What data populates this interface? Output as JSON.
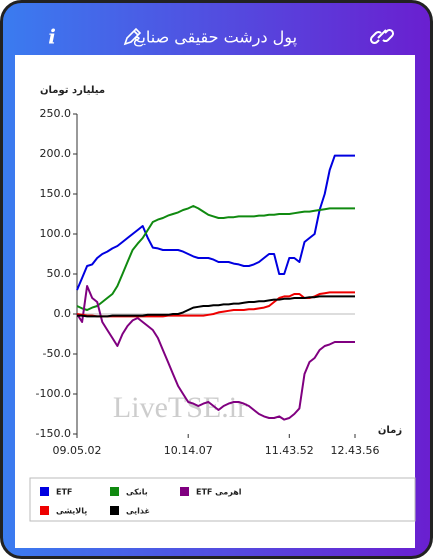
{
  "header": {
    "title": "پول درشت حقیقی صنایع",
    "info": "i"
  },
  "chart_data": {
    "type": "line",
    "y_label": "میلیارد تومان",
    "x_label": "زمان",
    "watermark": "LiveTSE.ir",
    "x": [
      0,
      1,
      2,
      3,
      4,
      5,
      6,
      7,
      8,
      9,
      10,
      11,
      12,
      13,
      14,
      15,
      16,
      17,
      18,
      19,
      20,
      21,
      22,
      23,
      24,
      25,
      26,
      27,
      28,
      29,
      30,
      31,
      32,
      33,
      34,
      35,
      36,
      37,
      38,
      39,
      40,
      41,
      42,
      43,
      44,
      45,
      46,
      47,
      48,
      49,
      50,
      51,
      52,
      53,
      54,
      55
    ],
    "xlim": [
      0,
      55
    ],
    "xticks": [
      {
        "value": 0,
        "label": "09.05.02"
      },
      {
        "value": 22,
        "label": "10.14.07"
      },
      {
        "value": 42,
        "label": "11.43.52"
      },
      {
        "value": 55,
        "label": "12.43.56"
      }
    ],
    "ylim": [
      -150,
      250
    ],
    "yticks": [
      {
        "value": -150,
        "label": "-150.0"
      },
      {
        "value": -100,
        "label": "-100.0"
      },
      {
        "value": -50,
        "label": "-50.0"
      },
      {
        "value": 0,
        "label": "0.0"
      },
      {
        "value": 50,
        "label": "50.0"
      },
      {
        "value": 100,
        "label": "100.0"
      },
      {
        "value": 150,
        "label": "150.0"
      },
      {
        "value": 200,
        "label": "200.0"
      },
      {
        "value": 250,
        "label": "250.0"
      }
    ],
    "grid": false,
    "legend": "bottom",
    "series": [
      {
        "name": "ETF",
        "color": "#0000e0",
        "values": [
          30,
          45,
          60,
          62,
          70,
          75,
          78,
          82,
          85,
          90,
          95,
          100,
          105,
          110,
          95,
          83,
          82,
          80,
          80,
          80,
          80,
          78,
          75,
          72,
          70,
          70,
          70,
          68,
          65,
          65,
          65,
          63,
          62,
          60,
          60,
          62,
          65,
          70,
          75,
          75,
          50,
          50,
          70,
          70,
          65,
          90,
          95,
          100,
          130,
          150,
          180,
          198,
          198,
          198,
          198,
          198
        ]
      },
      {
        "name": "بانکی",
        "color": "#108a10",
        "values": [
          10,
          7,
          5,
          8,
          10,
          15,
          20,
          25,
          35,
          50,
          65,
          80,
          88,
          95,
          105,
          115,
          118,
          120,
          123,
          125,
          127,
          130,
          132,
          135,
          132,
          128,
          124,
          122,
          120,
          120,
          121,
          121,
          122,
          122,
          122,
          122,
          123,
          123,
          124,
          124,
          125,
          125,
          125,
          126,
          127,
          128,
          128,
          129,
          130,
          131,
          132,
          132,
          132,
          132,
          132,
          132
        ]
      },
      {
        "name": "ETF اهرمی",
        "color": "#800080",
        "values": [
          0,
          -10,
          35,
          20,
          15,
          -10,
          -20,
          -30,
          -40,
          -25,
          -15,
          -8,
          -5,
          -10,
          -15,
          -20,
          -30,
          -45,
          -60,
          -75,
          -90,
          -100,
          -110,
          -112,
          -115,
          -112,
          -110,
          -115,
          -120,
          -115,
          -112,
          -110,
          -110,
          -112,
          -115,
          -120,
          -125,
          -128,
          -130,
          -130,
          -128,
          -132,
          -130,
          -125,
          -118,
          -75,
          -60,
          -55,
          -45,
          -40,
          -38,
          -35,
          -35,
          -35,
          -35,
          -35
        ]
      },
      {
        "name": "پالایشی",
        "color": "#ee0000",
        "values": [
          0,
          -1,
          -2,
          -2,
          -3,
          -3,
          -3,
          -3,
          -3,
          -3,
          -3,
          -3,
          -3,
          -3,
          -3,
          -3,
          -3,
          -3,
          -2,
          -2,
          -2,
          -2,
          -2,
          -2,
          -2,
          -2,
          -1,
          0,
          2,
          3,
          4,
          5,
          5,
          5,
          6,
          6,
          7,
          8,
          10,
          15,
          20,
          22,
          22,
          25,
          25,
          20,
          20,
          22,
          25,
          26,
          27,
          27,
          27,
          27,
          27,
          27
        ]
      },
      {
        "name": "غذایی",
        "color": "#000000",
        "values": [
          -2,
          -2,
          -3,
          -3,
          -3,
          -3,
          -3,
          -2,
          -2,
          -2,
          -2,
          -2,
          -2,
          -2,
          -1,
          -1,
          -1,
          -1,
          -1,
          0,
          0,
          2,
          5,
          8,
          9,
          10,
          10,
          11,
          11,
          12,
          12,
          13,
          13,
          14,
          15,
          15,
          16,
          16,
          17,
          18,
          18,
          19,
          19,
          20,
          20,
          20,
          21,
          21,
          22,
          22,
          22,
          22,
          22,
          22,
          22,
          22
        ]
      }
    ]
  }
}
